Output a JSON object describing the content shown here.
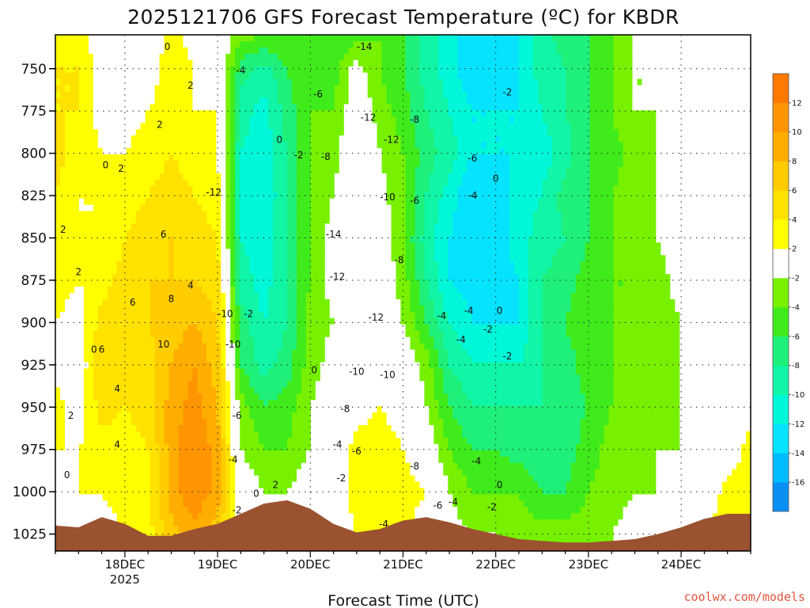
{
  "chart_data": {
    "type": "heatmap",
    "title": "2025121706 GFS Forecast Temperature (ºC) for KBDR",
    "xlabel": "Forecast Time (UTC)",
    "credit": "coolwx.com/models",
    "y_axis": {
      "scale": "pressure (inverted)",
      "ylim": [
        1035,
        730
      ],
      "ticks": [
        "750",
        "775",
        "800",
        "825",
        "850",
        "875",
        "900",
        "925",
        "950",
        "975",
        "1000",
        "1025"
      ]
    },
    "x_axis": {
      "start": "2025-12-17 06Z",
      "end": "2025-12-24 18Z",
      "ticks": [
        {
          "label": "18DEC",
          "sublabel": "2025",
          "time": "2025-12-18 00Z"
        },
        {
          "label": "19DEC",
          "sublabel": "",
          "time": "2025-12-19 00Z"
        },
        {
          "label": "20DEC",
          "sublabel": "",
          "time": "2025-12-20 00Z"
        },
        {
          "label": "21DEC",
          "sublabel": "",
          "time": "2025-12-21 00Z"
        },
        {
          "label": "22DEC",
          "sublabel": "",
          "time": "2025-12-22 00Z"
        },
        {
          "label": "23DEC",
          "sublabel": "",
          "time": "2025-12-23 00Z"
        },
        {
          "label": "24DEC",
          "sublabel": "",
          "time": "2025-12-24 00Z"
        }
      ]
    },
    "grid": "dotted",
    "colorbar": {
      "placement": "right",
      "levels": [
        -18,
        -16,
        -14,
        -12,
        -10,
        -8,
        -6,
        -4,
        -2,
        2,
        4,
        6,
        8,
        10,
        12,
        14
      ],
      "labels": [
        "-16",
        "-14",
        "-12",
        "-10",
        "-8",
        "-6",
        "-4",
        "-2",
        "2",
        "4",
        "6",
        "8",
        "10",
        "12"
      ],
      "colors": [
        "#0a8ff5",
        "#00bbff",
        "#06e3ff",
        "#00f7d8",
        "#10f5a6",
        "#1ff07a",
        "#40eb1c",
        "#77f100",
        "#ffffff",
        "#ffff00",
        "#ffe200",
        "#ffcc00",
        "#ffae00",
        "#ff9500",
        "#ff7800"
      ]
    },
    "terrain_color": "#9b5230",
    "contour_line_colors": {
      "temperature": "#111111",
      "zero": "#c81e6e"
    },
    "times": [
      0,
      6,
      12,
      18,
      24,
      30,
      36,
      42,
      48,
      54,
      60,
      66,
      72,
      78,
      84,
      90,
      96,
      102,
      108,
      114,
      120,
      126,
      132,
      138,
      144,
      150,
      156,
      162,
      168,
      174,
      180
    ],
    "surface_pressure": [
      1020,
      1021,
      1015,
      1019,
      1026,
      1026,
      1022,
      1019,
      1013,
      1007,
      1005,
      1010,
      1019,
      1024,
      1022,
      1017,
      1015,
      1018,
      1022,
      1025,
      1028,
      1029,
      1030,
      1030,
      1029,
      1028,
      1025,
      1021,
      1016,
      1013,
      1013
    ],
    "levels_hpa": [
      730,
      750,
      775,
      800,
      825,
      850,
      875,
      900,
      925,
      950,
      975,
      1000,
      1025,
      1035
    ],
    "temperature_c": [
      [
        4,
        3,
        0,
        -1,
        0,
        3,
        1,
        0,
        -3,
        -4,
        -4,
        -6,
        -6,
        -5,
        -4,
        -6,
        -9,
        -11,
        -14,
        -13,
        -12,
        -9,
        -7,
        -6,
        -4,
        -2,
        -1,
        1,
        -1,
        -1,
        -2
      ],
      [
        4,
        4,
        1,
        0,
        1,
        3,
        2,
        1,
        -7,
        -9,
        -6,
        -4,
        -5,
        -1,
        -4,
        -6,
        -9,
        -11,
        -14,
        -13,
        -12,
        -9,
        -8,
        -6,
        -4,
        -2,
        -2,
        0,
        -1,
        -2,
        -2
      ],
      [
        4,
        4,
        1,
        1,
        2,
        3,
        2,
        2,
        -9,
        -11,
        -7,
        -4,
        -4,
        0,
        -3,
        -5,
        -8,
        -10,
        -12,
        -12,
        -12,
        -10,
        -8,
        -6,
        -4,
        -2,
        -2,
        0,
        1,
        -2,
        -2
      ],
      [
        5,
        3,
        2,
        2,
        3,
        4,
        3,
        2,
        -10,
        -11,
        -8,
        -4,
        -3,
        1,
        -2,
        -4,
        -7,
        -9,
        -12,
        -12,
        -12,
        -11,
        -9,
        -6,
        -5,
        -3,
        -2,
        0,
        1,
        -1,
        -2
      ],
      [
        4,
        2,
        2,
        3,
        4,
        5,
        4,
        3,
        -10,
        -12,
        -8,
        -4,
        -2,
        1,
        -1,
        -4,
        -8,
        -11,
        -14,
        -13,
        -11,
        -10,
        -7,
        -6,
        -4,
        -3,
        -2,
        0,
        0,
        -1,
        -2
      ],
      [
        4,
        2,
        2,
        4,
        5,
        6,
        5,
        4,
        -10,
        -11,
        -8,
        -4,
        -1,
        1,
        0,
        -4,
        -9,
        -12,
        -14,
        -13,
        -11,
        -9,
        -8,
        -6,
        -4,
        -3,
        -2,
        0,
        0,
        0,
        -1
      ],
      [
        3,
        2,
        3,
        5,
        6,
        6,
        6,
        5,
        -9,
        -11,
        -8,
        -4,
        -1,
        2,
        0,
        -3,
        -8,
        -12,
        -13,
        -13,
        -12,
        -8,
        -7,
        -5,
        -4,
        -4,
        -3,
        -1,
        0,
        0,
        -2
      ],
      [
        2,
        1,
        5,
        6,
        6,
        7,
        8,
        6,
        -7,
        -10,
        -8,
        -3,
        -2,
        2,
        1,
        -2,
        -6,
        -10,
        -12,
        -12,
        -12,
        -8,
        -6,
        -4,
        -4,
        -4,
        -3,
        -2,
        0,
        0,
        -2
      ],
      [
        1,
        0,
        6,
        6,
        5,
        8,
        10,
        7,
        -6,
        -9,
        -7,
        -3,
        -1,
        1,
        1,
        0,
        -3,
        -8,
        -10,
        -10,
        -10,
        -8,
        -7,
        -5,
        -4,
        -3,
        -3,
        -2,
        -1,
        0,
        0
      ],
      [
        3,
        1,
        5,
        4,
        5,
        9,
        11,
        8,
        -3,
        -6,
        -5,
        -2,
        0,
        1,
        2,
        1,
        -2,
        -6,
        -8,
        -8,
        -8,
        -8,
        -7,
        -6,
        -4,
        -3,
        -3,
        -2,
        -1,
        0,
        1
      ],
      [
        2,
        2,
        3,
        3,
        4,
        9,
        12,
        9,
        -2,
        -4,
        -4,
        -2,
        0,
        3,
        3,
        2,
        0,
        -4,
        -6,
        -6,
        -7,
        -8,
        -7,
        -5,
        -3,
        -3,
        -2,
        -2,
        -1,
        0,
        3
      ],
      [
        1,
        2,
        2,
        3,
        4,
        9,
        12,
        9,
        0,
        -2,
        -2,
        0,
        0,
        3,
        4,
        3,
        2,
        -2,
        -4,
        -4,
        -4,
        -6,
        -6,
        -4,
        -3,
        -2,
        -2,
        -1,
        0,
        3,
        4
      ],
      [
        0,
        1,
        1,
        2,
        3,
        7,
        9,
        7,
        0,
        -1,
        -1,
        0,
        1,
        2,
        3,
        2,
        1,
        -1,
        -2,
        -2,
        -3,
        -3,
        -3,
        -3,
        -2,
        -1,
        0,
        0,
        2,
        3,
        4
      ],
      [
        0,
        1,
        1,
        2,
        3,
        6,
        8,
        6,
        0,
        -1,
        -1,
        0,
        1,
        2,
        3,
        2,
        1,
        -1,
        -2,
        -2,
        -3,
        -3,
        -3,
        -3,
        -2,
        -1,
        0,
        0,
        2,
        3,
        4
      ]
    ],
    "contour_labels": [
      {
        "text": "0",
        "t": 29,
        "p": 737
      },
      {
        "text": "2",
        "t": 35,
        "p": 760
      },
      {
        "text": "2",
        "t": 27,
        "p": 783
      },
      {
        "text": "0",
        "t": 13,
        "p": 807
      },
      {
        "text": "2",
        "t": 17,
        "p": 809
      },
      {
        "text": "2",
        "t": 2,
        "p": 845
      },
      {
        "text": "2",
        "t": 6,
        "p": 870
      },
      {
        "text": "6",
        "t": 28,
        "p": 848
      },
      {
        "text": "8",
        "t": 30,
        "p": 886
      },
      {
        "text": "4",
        "t": 35,
        "p": 878
      },
      {
        "text": "6",
        "t": 20,
        "p": 888
      },
      {
        "text": "0",
        "t": 10,
        "p": 916
      },
      {
        "text": "6",
        "t": 12,
        "p": 916
      },
      {
        "text": "4",
        "t": 16,
        "p": 939
      },
      {
        "text": "10",
        "t": 28,
        "p": 913
      },
      {
        "text": "2",
        "t": 4,
        "p": 955
      },
      {
        "text": "0",
        "t": 3,
        "p": 990
      },
      {
        "text": "4",
        "t": 16,
        "p": 972
      },
      {
        "text": "-12",
        "t": 41,
        "p": 823
      },
      {
        "text": "-4",
        "t": 48,
        "p": 751
      },
      {
        "text": "-10",
        "t": 44,
        "p": 895
      },
      {
        "text": "-10",
        "t": 46,
        "p": 913
      },
      {
        "text": "-2",
        "t": 50,
        "p": 895
      },
      {
        "text": "-6",
        "t": 47,
        "p": 955
      },
      {
        "text": "-4",
        "t": 46,
        "p": 981
      },
      {
        "text": "-2",
        "t": 47,
        "p": 1011
      },
      {
        "text": "0",
        "t": 52,
        "p": 1001
      },
      {
        "text": "2",
        "t": 57,
        "p": 996
      },
      {
        "text": "0",
        "t": 58,
        "p": 792
      },
      {
        "text": "0",
        "t": 67,
        "p": 928
      },
      {
        "text": "-2",
        "t": 63,
        "p": 801
      },
      {
        "text": "-6",
        "t": 68,
        "p": 765
      },
      {
        "text": "-8",
        "t": 70,
        "p": 802
      },
      {
        "text": "-14",
        "t": 80,
        "p": 737
      },
      {
        "text": "-12",
        "t": 81,
        "p": 779
      },
      {
        "text": "-12",
        "t": 87,
        "p": 792
      },
      {
        "text": "-14",
        "t": 72,
        "p": 848
      },
      {
        "text": "-12",
        "t": 73,
        "p": 873
      },
      {
        "text": "-10",
        "t": 86,
        "p": 826
      },
      {
        "text": "-12",
        "t": 83,
        "p": 897
      },
      {
        "text": "-8",
        "t": 89,
        "p": 863
      },
      {
        "text": "-6",
        "t": 93,
        "p": 828
      },
      {
        "text": "-8",
        "t": 93,
        "p": 780
      },
      {
        "text": "-6",
        "t": 108,
        "p": 803
      },
      {
        "text": "-4",
        "t": 108,
        "p": 825
      },
      {
        "text": "-10",
        "t": 78,
        "p": 929
      },
      {
        "text": "-10",
        "t": 86,
        "p": 931
      },
      {
        "text": "-8",
        "t": 75,
        "p": 951
      },
      {
        "text": "-4",
        "t": 73,
        "p": 972
      },
      {
        "text": "-6",
        "t": 78,
        "p": 976
      },
      {
        "text": "-8",
        "t": 93,
        "p": 985
      },
      {
        "text": "-2",
        "t": 74,
        "p": 992
      },
      {
        "text": "-4",
        "t": 100,
        "p": 896
      },
      {
        "text": "-4",
        "t": 105,
        "p": 910
      },
      {
        "text": "-4",
        "t": 107,
        "p": 893
      },
      {
        "text": "-2",
        "t": 112,
        "p": 904
      },
      {
        "text": "0",
        "t": 115,
        "p": 893
      },
      {
        "text": "-2",
        "t": 117,
        "p": 920
      },
      {
        "text": "-6",
        "t": 99,
        "p": 1008
      },
      {
        "text": "-4",
        "t": 103,
        "p": 1006
      },
      {
        "text": "-4",
        "t": 109,
        "p": 982
      },
      {
        "text": "-2",
        "t": 113,
        "p": 1009
      },
      {
        "text": "0",
        "t": 115,
        "p": 996
      },
      {
        "text": "-4",
        "t": 85,
        "p": 1019
      },
      {
        "text": "-2",
        "t": 117,
        "p": 764
      },
      {
        "text": "0",
        "t": 114,
        "p": 815
      }
    ]
  }
}
